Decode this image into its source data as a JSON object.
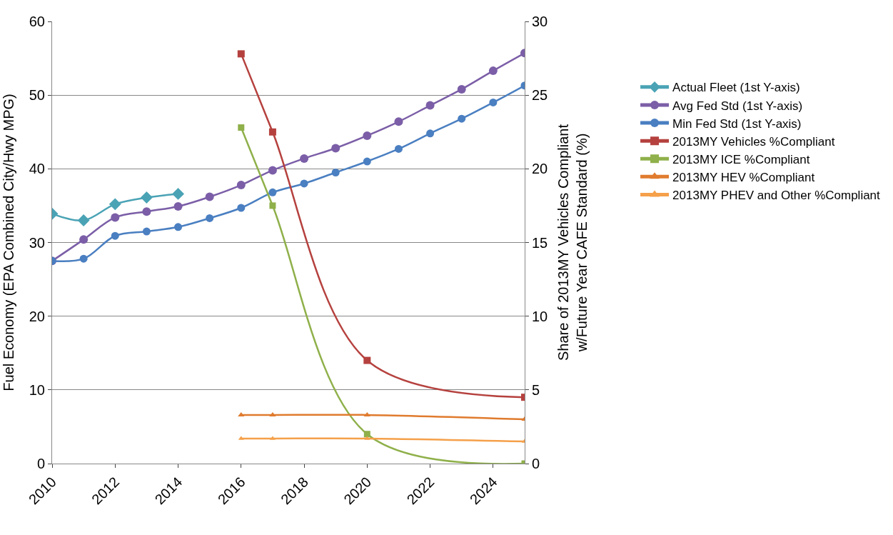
{
  "chart_data": {
    "type": "line",
    "ylabel": "Fuel Economy (EPA Combined City/Hwy MPG)",
    "y2label": "Share of 2013MY Vehicles Compliant w/Future Year CAFE Standard (%)",
    "xlim": [
      2010,
      2025
    ],
    "xticks": [
      2010,
      2012,
      2014,
      2016,
      2018,
      2020,
      2022,
      2024
    ],
    "ylim": [
      0,
      60
    ],
    "yticks": [
      0,
      10,
      20,
      30,
      40,
      50,
      60
    ],
    "y2lim": [
      0,
      30
    ],
    "y2ticks": [
      0,
      5,
      10,
      15,
      20,
      25,
      30
    ],
    "grid": "y",
    "legend": "right",
    "series": [
      {
        "name": "Actual Fleet (1st Y-axis)",
        "color": "#4aa3b5",
        "marker": "diamond",
        "x": [
          2010,
          2011,
          2012,
          2013,
          2014
        ],
        "values": [
          33.9,
          33.0,
          35.2,
          36.1,
          36.6
        ]
      },
      {
        "name": "Avg Fed Std (1st Y-axis)",
        "color": "#7b5ea7",
        "marker": "circle",
        "x": [
          2010,
          2011,
          2012,
          2013,
          2014,
          2015,
          2016,
          2017,
          2018,
          2019,
          2020,
          2021,
          2022,
          2023,
          2024,
          2025
        ],
        "values": [
          27.5,
          30.4,
          33.4,
          34.2,
          34.9,
          36.2,
          37.8,
          39.8,
          41.4,
          42.8,
          44.5,
          46.4,
          48.6,
          50.8,
          53.3,
          55.7
        ]
      },
      {
        "name": "Min Fed Std (1st Y-axis)",
        "color": "#4a7fc1",
        "marker": "circle",
        "x": [
          2010,
          2011,
          2012,
          2013,
          2014,
          2015,
          2016,
          2017,
          2018,
          2019,
          2020,
          2021,
          2022,
          2023,
          2024,
          2025
        ],
        "values": [
          27.5,
          27.8,
          30.9,
          31.5,
          32.1,
          33.3,
          34.7,
          36.8,
          38.0,
          39.5,
          41.0,
          42.7,
          44.8,
          46.8,
          49.0,
          51.3
        ]
      },
      {
        "name": "2013MY Vehicles %Compliant",
        "color": "#b5413e",
        "marker": "square",
        "axis": "y2",
        "x": [
          2016,
          2017,
          2020,
          2025
        ],
        "values": [
          27.8,
          22.5,
          7.0,
          4.5
        ]
      },
      {
        "name": "2013MY ICE %Compliant",
        "color": "#8fb04a",
        "marker": "square",
        "axis": "y2",
        "x": [
          2016,
          2017,
          2020,
          2025
        ],
        "values": [
          22.8,
          17.5,
          2.0,
          0
        ]
      },
      {
        "name": "2013MY HEV %Compliant",
        "color": "#e07b2e",
        "marker": "triangle",
        "axis": "y2",
        "x": [
          2016,
          2017,
          2020,
          2025
        ],
        "values": [
          3.3,
          3.3,
          3.3,
          3.0
        ]
      },
      {
        "name": "2013MY PHEV and Other %Compliant",
        "color": "#f5a04a",
        "marker": "triangle",
        "axis": "y2",
        "x": [
          2016,
          2017,
          2020,
          2025
        ],
        "values": [
          1.7,
          1.7,
          1.7,
          1.5
        ]
      }
    ]
  }
}
